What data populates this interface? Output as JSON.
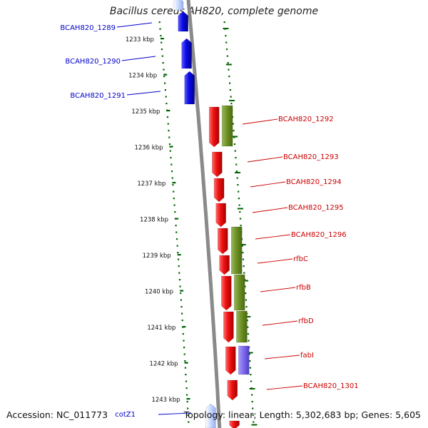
{
  "title": "Bacillus cereus AH820, complete genome",
  "accession_label": "Accession: NC_011773",
  "summary_label": "Topology: linear; Length: 5,302,683 bp; Genes: 5,605",
  "colors": {
    "forward_gene": "#0a0ae6",
    "reverse_gene": "#ee1111",
    "cds_olive": "#6b8e23",
    "cds_purple": "#7b68ee",
    "tick": "#006400",
    "backbone": "#8a8a8a",
    "label_blue": "#0000cc",
    "label_red": "#cc0000"
  },
  "scale_ticks": [
    "1233 kbp",
    "1234 kbp",
    "1235 kbp",
    "1236 kbp",
    "1237 kbp",
    "1238 kbp",
    "1239 kbp",
    "1240 kbp",
    "1241 kbp",
    "1242 kbp",
    "1243 kbp"
  ],
  "genes_forward": [
    {
      "name": "BCAH820_1289"
    },
    {
      "name": "BCAH820_1290"
    },
    {
      "name": "BCAH820_1291"
    },
    {
      "name": "cotZ1"
    }
  ],
  "genes_reverse": [
    {
      "name": "BCAH820_1292"
    },
    {
      "name": "BCAH820_1293"
    },
    {
      "name": "BCAH820_1294"
    },
    {
      "name": "BCAH820_1295"
    },
    {
      "name": "BCAH820_1296"
    },
    {
      "name": "rfbC"
    },
    {
      "name": "rfbB"
    },
    {
      "name": "rfbD"
    },
    {
      "name": "fabI"
    },
    {
      "name": "BCAH820_1301"
    }
  ]
}
